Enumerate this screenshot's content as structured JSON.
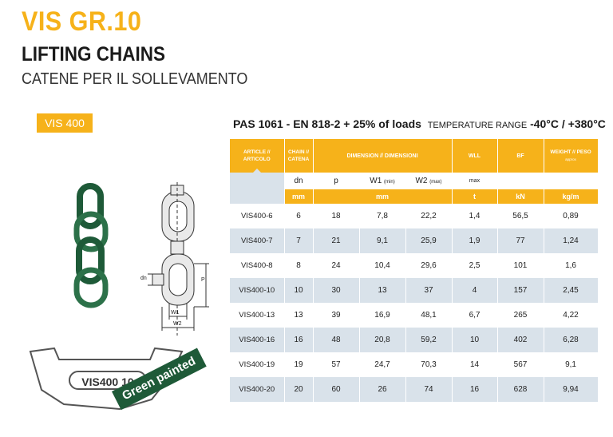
{
  "header": {
    "title": "VIS GR.10",
    "subtitle": "LIFTING CHAINS",
    "subtitle_it": "CATENE PER IL SOLLEVAMENTO",
    "badge": "VIS 400"
  },
  "headline": {
    "standard": "PAS 1061  -  EN 818-2 + 25% of loads",
    "temp_label": "TEMPERATURE RANGE",
    "temp_value": "-40°C / +380°C"
  },
  "table": {
    "headers": {
      "article": "ARTICLE // ARTICOLO",
      "chain": "CHAIN // CATENA",
      "dimension": "DIMENSION // DIMENSIONI",
      "wll": "WLL",
      "bf": "BF",
      "weight": "WEIGHT // PESO",
      "weight_note": "approx"
    },
    "symbols": {
      "dn": "dn",
      "p": "p",
      "w1": "W1",
      "w1_note": "(min)",
      "w2": "W2",
      "w2_note": "(max)",
      "wll": "max"
    },
    "units": {
      "chain": "mm",
      "dimension": "mm",
      "wll": "t",
      "bf": "kN",
      "weight": "kg/m"
    },
    "rows": [
      {
        "article": "VIS400-6",
        "dn": "6",
        "p": "18",
        "w1": "7,8",
        "w2": "22,2",
        "wll": "1,4",
        "bf": "56,5",
        "weight": "0,89"
      },
      {
        "article": "VIS400-7",
        "dn": "7",
        "p": "21",
        "w1": "9,1",
        "w2": "25,9",
        "wll": "1,9",
        "bf": "77",
        "weight": "1,24"
      },
      {
        "article": "VIS400-8",
        "dn": "8",
        "p": "24",
        "w1": "10,4",
        "w2": "29,6",
        "wll": "2,5",
        "bf": "101",
        "weight": "1,6"
      },
      {
        "article": "VIS400-10",
        "dn": "10",
        "p": "30",
        "w1": "13",
        "w2": "37",
        "wll": "4",
        "bf": "157",
        "weight": "2,45"
      },
      {
        "article": "VIS400-13",
        "dn": "13",
        "p": "39",
        "w1": "16,9",
        "w2": "48,1",
        "wll": "6,7",
        "bf": "265",
        "weight": "4,22"
      },
      {
        "article": "VIS400-16",
        "dn": "16",
        "p": "48",
        "w1": "20,8",
        "w2": "59,2",
        "wll": "10",
        "bf": "402",
        "weight": "6,28"
      },
      {
        "article": "VIS400-19",
        "dn": "19",
        "p": "57",
        "w1": "24,7",
        "w2": "70,3",
        "wll": "14",
        "bf": "567",
        "weight": "9,1"
      },
      {
        "article": "VIS400-20",
        "dn": "20",
        "p": "60",
        "w1": "26",
        "w2": "74",
        "wll": "16",
        "bf": "628",
        "weight": "9,94"
      }
    ]
  },
  "drawing": {
    "dim_dn": "dn",
    "dim_p": "P",
    "dim_w1": "W1",
    "dim_w2": "W2",
    "tag_label": "VIS400 10",
    "stamp": "Green painted"
  },
  "colors": {
    "accent": "#f6b21a",
    "chain_green": "#1e5a38",
    "row_alt": "#d9e2ea"
  }
}
